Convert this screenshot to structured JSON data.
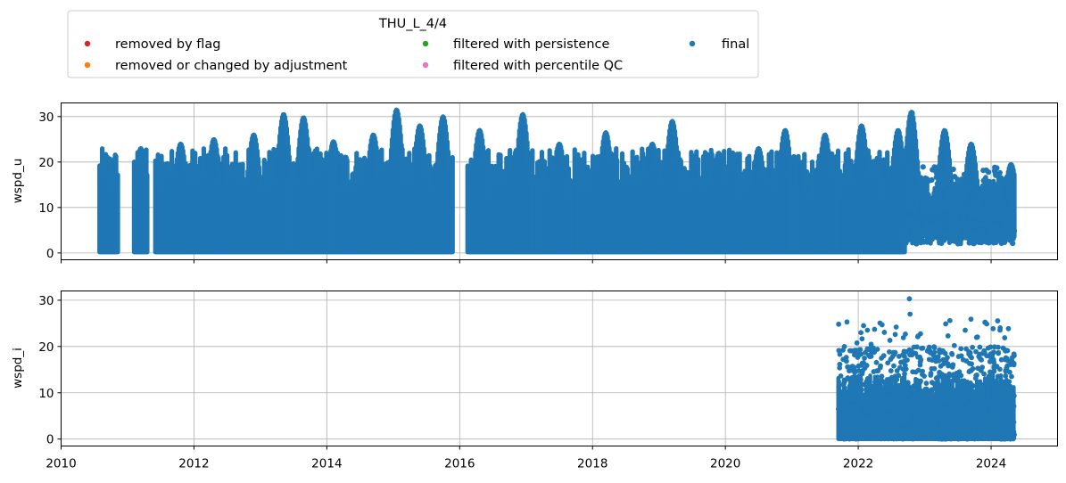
{
  "colors": {
    "removed_by_flag": "#d62728",
    "removed_or_changed_by_adjustment": "#ff7f0e",
    "filtered_with_persistence": "#2ca02c",
    "filtered_with_percentile_qc": "#e377c2",
    "final": "#1f77b4",
    "grid": "#b0b0b0"
  },
  "legend": {
    "title": "THU_L_4/4",
    "items": [
      {
        "label": "removed by flag",
        "color": "#d62728"
      },
      {
        "label": "removed or changed by adjustment",
        "color": "#ff7f0e"
      },
      {
        "label": "filtered with persistence",
        "color": "#2ca02c"
      },
      {
        "label": "filtered with percentile QC",
        "color": "#e377c2"
      },
      {
        "label": "final",
        "color": "#1f77b4"
      }
    ],
    "placement": "above plots, upper-left, 3 columns"
  },
  "chart_data": [
    {
      "type": "scatter",
      "ylabel": "wspd_u",
      "xlabel": "",
      "xlim": [
        2010.0,
        2025.0
      ],
      "ylim": [
        -1.5,
        33
      ],
      "x_ticks": [
        2010,
        2012,
        2014,
        2016,
        2018,
        2020,
        2022,
        2024
      ],
      "x_tick_labels_shown": false,
      "y_ticks": [
        0,
        10,
        20,
        30
      ],
      "grid": true,
      "data_gaps": [
        [
          2010.86,
          2011.1
        ],
        [
          2011.3,
          2011.42
        ],
        [
          2015.9,
          2016.12
        ]
      ],
      "envelope_peaks": [
        {
          "x": 2010.65,
          "y": 16.5
        },
        {
          "x": 2011.2,
          "y": 23
        },
        {
          "x": 2011.8,
          "y": 24
        },
        {
          "x": 2012.3,
          "y": 25
        },
        {
          "x": 2012.9,
          "y": 26
        },
        {
          "x": 2013.35,
          "y": 30.5
        },
        {
          "x": 2013.65,
          "y": 29.8
        },
        {
          "x": 2014.1,
          "y": 24.5
        },
        {
          "x": 2014.7,
          "y": 26
        },
        {
          "x": 2015.05,
          "y": 31.5
        },
        {
          "x": 2015.4,
          "y": 28
        },
        {
          "x": 2015.75,
          "y": 30
        },
        {
          "x": 2016.3,
          "y": 27
        },
        {
          "x": 2016.95,
          "y": 30.5
        },
        {
          "x": 2017.5,
          "y": 24
        },
        {
          "x": 2018.2,
          "y": 26.5
        },
        {
          "x": 2018.9,
          "y": 24
        },
        {
          "x": 2019.2,
          "y": 29
        },
        {
          "x": 2019.9,
          "y": 22
        },
        {
          "x": 2020.5,
          "y": 23
        },
        {
          "x": 2020.9,
          "y": 27
        },
        {
          "x": 2021.5,
          "y": 26
        },
        {
          "x": 2022.05,
          "y": 28
        },
        {
          "x": 2022.6,
          "y": 27
        },
        {
          "x": 2022.8,
          "y": 31
        },
        {
          "x": 2023.3,
          "y": 27
        },
        {
          "x": 2023.7,
          "y": 24
        },
        {
          "x": 2024.3,
          "y": 19.5
        }
      ],
      "series": [
        {
          "name": "final",
          "color": "#1f77b4",
          "segments": [
            [
              2010.58,
              2010.86
            ],
            [
              2011.1,
              2011.3
            ],
            [
              2011.42,
              2015.9
            ],
            [
              2016.12,
              2024.35
            ]
          ]
        }
      ]
    },
    {
      "type": "scatter",
      "ylabel": "wspd_i",
      "xlabel": "",
      "xlim": [
        2010.0,
        2025.0
      ],
      "ylim": [
        -1.5,
        32
      ],
      "x_ticks": [
        2010,
        2012,
        2014,
        2016,
        2018,
        2020,
        2022,
        2024
      ],
      "x_tick_labels": [
        "2010",
        "2012",
        "2014",
        "2016",
        "2018",
        "2020",
        "2022",
        "2024"
      ],
      "y_ticks": [
        0,
        10,
        20,
        30
      ],
      "grid": true,
      "series": [
        {
          "name": "final",
          "color": "#1f77b4",
          "segments": [
            [
              2021.7,
              2024.35
            ]
          ]
        }
      ]
    }
  ]
}
